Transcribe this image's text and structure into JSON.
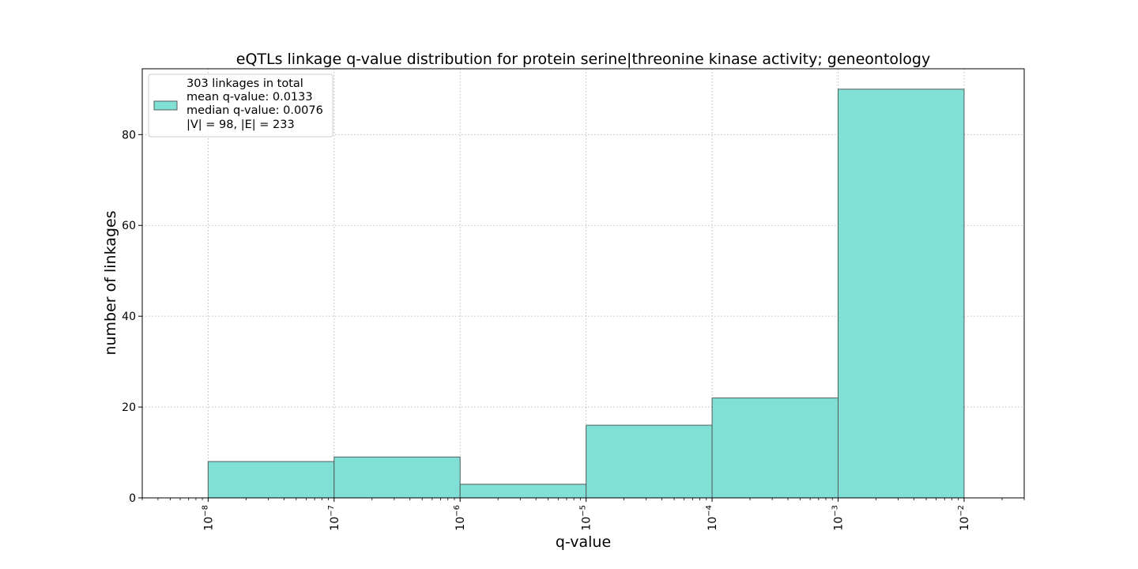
{
  "chart_data": {
    "type": "bar",
    "title": "eQTLs linkage q-value distribution for protein serine|threonine kinase activity; geneontology",
    "xlabel": "q-value",
    "ylabel": "number of linkages",
    "x_scale": "log",
    "xlim": [
      3e-09,
      0.03
    ],
    "ylim": [
      0,
      94.5
    ],
    "grid": true,
    "bins": [
      {
        "x0": 1e-08,
        "x1": 1e-07,
        "value": 8
      },
      {
        "x0": 1e-07,
        "x1": 1e-06,
        "value": 9
      },
      {
        "x0": 1e-06,
        "x1": 1e-05,
        "value": 3
      },
      {
        "x0": 1e-05,
        "x1": 0.0001,
        "value": 16
      },
      {
        "x0": 0.0001,
        "x1": 0.001,
        "value": 22
      },
      {
        "x0": 0.001,
        "x1": 0.01,
        "value": 90
      }
    ],
    "x_ticks": [
      {
        "value": 1e-08,
        "exp": "−8"
      },
      {
        "value": 1e-07,
        "exp": "−7"
      },
      {
        "value": 1e-06,
        "exp": "−6"
      },
      {
        "value": 1e-05,
        "exp": "−5"
      },
      {
        "value": 0.0001,
        "exp": "−4"
      },
      {
        "value": 0.001,
        "exp": "−3"
      },
      {
        "value": 0.01,
        "exp": "−2"
      }
    ],
    "y_ticks": [
      0,
      20,
      40,
      60,
      80
    ],
    "bar_color": "#80e0d6",
    "bar_edge_color": "#4f5f5c",
    "legend": {
      "placement": "top-left",
      "lines": [
        "303 linkages in total",
        "mean q-value: 0.0133",
        "median q-value: 0.0076",
        "|V| = 98, |E| = 233"
      ]
    }
  }
}
